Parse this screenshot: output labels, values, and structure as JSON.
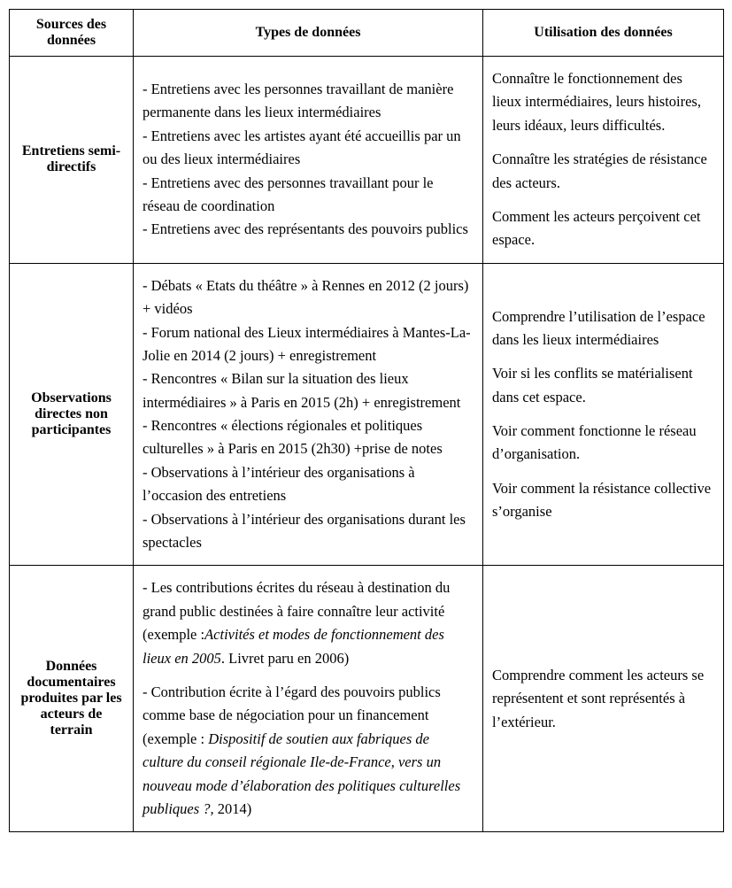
{
  "table": {
    "headers": {
      "c1": "Sources des données",
      "c2": "Types de données",
      "c3": "Utilisation des données"
    },
    "rows": [
      {
        "label": "Entretiens semi-directifs",
        "types_lines": [
          "- Entretiens avec les personnes travaillant de manière permanente dans les lieux intermédiaires",
          "- Entretiens avec les artistes ayant été accueillis par un ou des lieux intermédiaires",
          "- Entretiens avec des personnes travaillant pour le réseau de coordination",
          "- Entretiens avec des représentants des pouvoirs publics"
        ],
        "uses_paras": [
          "Connaître le fonctionnement des lieux intermédiaires, leurs histoires, leurs idéaux, leurs difficultés.",
          "Connaître les stratégies de résistance des acteurs.",
          "Comment les acteurs perçoivent cet espace."
        ]
      },
      {
        "label": "Observations directes non participantes",
        "types_lines": [
          "- Débats « Etats du théâtre » à Rennes en 2012 (2 jours) + vidéos",
          "- Forum national des Lieux intermédiaires à Mantes-La-Jolie en 2014 (2 jours) + enregistrement",
          "- Rencontres « Bilan sur la situation des lieux intermédiaires » à Paris en 2015 (2h) + enregistrement",
          "- Rencontres « élections régionales et politiques culturelles » à Paris en 2015 (2h30) +prise de notes",
          "- Observations à l’intérieur des organisations à l’occasion des entretiens",
          "- Observations à l’intérieur des organisations durant les spectacles"
        ],
        "uses_paras": [
          "Comprendre l’utilisation de l’espace dans les lieux intermédiaires",
          "Voir si les conflits se matérialisent dans cet espace.",
          "Voir comment fonctionne le réseau d’organisation.",
          "Voir comment la résistance collective s’organise"
        ]
      },
      {
        "label": "Données documentaires produites par les acteurs de terrain",
        "types_runs_para1": [
          {
            "t": "- Les contributions écrites du réseau à destination du grand public destinées à faire connaître leur activité (exemple :",
            "i": false
          },
          {
            "t": "Activités et modes de fonctionnement des lieux en 2005",
            "i": true
          },
          {
            "t": ". Livret paru en 2006)",
            "i": false
          }
        ],
        "types_runs_para2": [
          {
            "t": "- Contribution écrite à l’égard des pouvoirs publics comme base de négociation pour un financement (exemple : ",
            "i": false
          },
          {
            "t": "Dispositif de soutien aux fabriques de culture du conseil régionale Ile-de-France, vers un nouveau mode d’élaboration des politiques culturelles publiques ?,",
            "i": true
          },
          {
            "t": " 2014)",
            "i": false
          }
        ],
        "uses_paras": [
          "Comprendre comment les acteurs se représentent et sont représentés à l’extérieur."
        ]
      }
    ]
  }
}
